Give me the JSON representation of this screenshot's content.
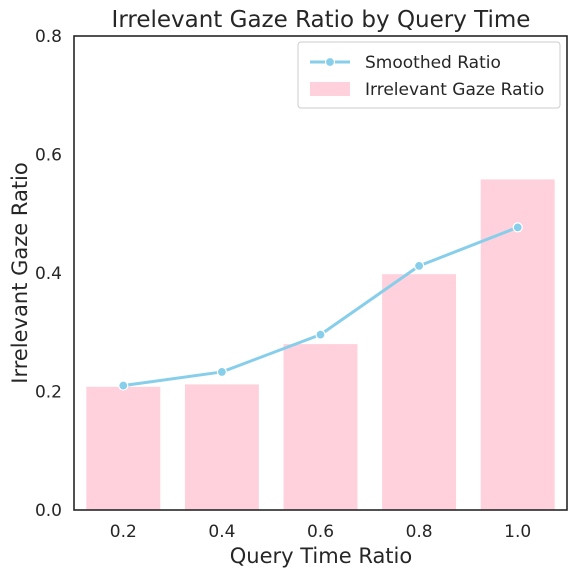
{
  "chart_data": {
    "type": "bar",
    "title": "Irrelevant Gaze Ratio by Query Time",
    "xlabel": "Query Time Ratio",
    "ylabel": "Irrelevant Gaze Ratio",
    "categories": [
      "0.2",
      "0.4",
      "0.6",
      "0.8",
      "1.0"
    ],
    "ylim": [
      0,
      0.8
    ],
    "yticks": [
      "0.0",
      "0.2",
      "0.4",
      "0.6",
      "0.8"
    ],
    "grid": false,
    "legend_position": "top-right",
    "series": [
      {
        "name": "Irrelevant Gaze Ratio",
        "type": "bar",
        "color": "#ffd1dc",
        "values": [
          0.208,
          0.212,
          0.28,
          0.398,
          0.558
        ]
      },
      {
        "name": "Smoothed Ratio",
        "type": "line",
        "color": "#87ceeb",
        "marker": "circle",
        "values": [
          0.21,
          0.233,
          0.296,
          0.412,
          0.477
        ]
      }
    ],
    "legend": [
      "Smoothed Ratio",
      "Irrelevant Gaze Ratio"
    ]
  }
}
